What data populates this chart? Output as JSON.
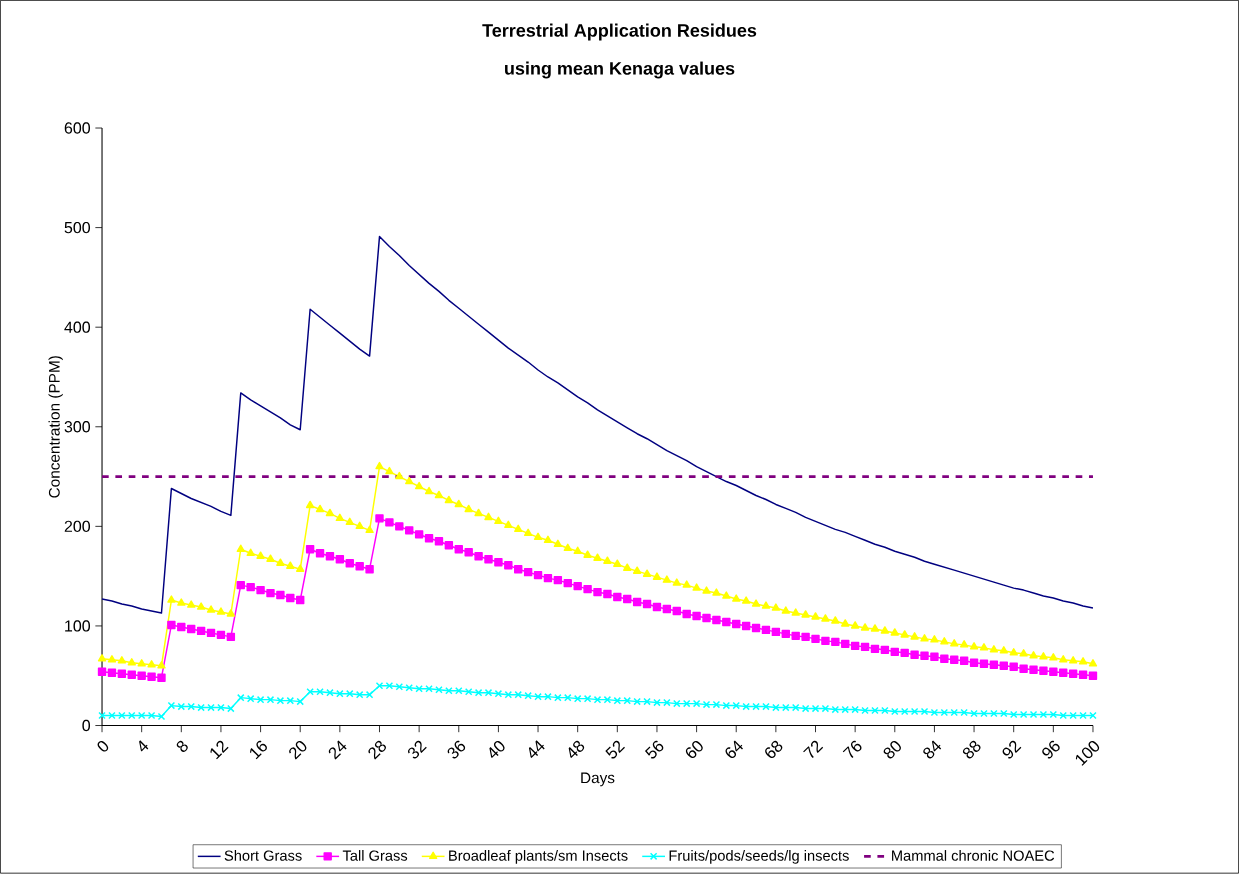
{
  "chart_data": {
    "type": "line",
    "title": "Terrestrial Application Residues",
    "subtitle": "using mean Kenaga values",
    "xlabel": "Days",
    "ylabel": "Concentration (PPM)",
    "categories": [
      "0",
      null,
      null,
      null,
      "4",
      null,
      null,
      null,
      "8",
      null,
      null,
      null,
      "12",
      null,
      null,
      null,
      "16",
      null,
      null,
      null,
      "20",
      null,
      null,
      null,
      "24",
      null,
      null,
      null,
      "28",
      null,
      null,
      null,
      "32",
      null,
      null,
      null,
      "36",
      null,
      null,
      null,
      "40",
      null,
      null,
      null,
      "44",
      null,
      null,
      null,
      "48",
      null,
      null,
      null,
      "52",
      null,
      null,
      null,
      "56",
      null,
      null,
      null,
      "60",
      null,
      null,
      null,
      "64",
      null,
      null,
      null,
      "68",
      null,
      null,
      null,
      "72",
      null,
      null,
      null,
      "76",
      null,
      null,
      null,
      "80",
      null,
      null,
      null,
      "84",
      null,
      null,
      null,
      "88",
      null,
      null,
      null,
      "92",
      null,
      null,
      null,
      "96",
      null,
      null,
      null,
      "100"
    ],
    "ylim": [
      0,
      600
    ],
    "yticks": [
      0,
      100,
      200,
      300,
      400,
      500,
      600
    ],
    "grid": false,
    "legend": "bottom",
    "line_style": "solid",
    "series": [
      {
        "name": "Short Grass",
        "color": "#000080",
        "marker": "none",
        "values": [
          127,
          125,
          122,
          120,
          117,
          115,
          113,
          238,
          233,
          228,
          224,
          220,
          215,
          211,
          334,
          327,
          321,
          315,
          309,
          302,
          297,
          418,
          410,
          402,
          394,
          386,
          378,
          371,
          491,
          481,
          472,
          462,
          453,
          444,
          436,
          427,
          419,
          411,
          403,
          395,
          387,
          379,
          372,
          365,
          357,
          350,
          344,
          337,
          330,
          324,
          317,
          311,
          305,
          299,
          293,
          288,
          282,
          276,
          271,
          266,
          260,
          255,
          250,
          245,
          241,
          236,
          231,
          227,
          222,
          218,
          214,
          209,
          205,
          201,
          197,
          194,
          190,
          186,
          182,
          179,
          175,
          172,
          169,
          165,
          162,
          159,
          156,
          153,
          150,
          147,
          144,
          141,
          138,
          136,
          133,
          130,
          128,
          125,
          123,
          120,
          118
        ]
      },
      {
        "name": "Tall Grass",
        "color": "#FF00FF",
        "marker": "square",
        "values": [
          54,
          53,
          52,
          51,
          50,
          49,
          48,
          101,
          99,
          97,
          95,
          93,
          91,
          89,
          141,
          139,
          136,
          133,
          131,
          128,
          126,
          177,
          173,
          170,
          167,
          163,
          160,
          157,
          208,
          204,
          200,
          196,
          192,
          188,
          185,
          181,
          177,
          174,
          170,
          167,
          164,
          161,
          157,
          154,
          151,
          148,
          146,
          143,
          140,
          137,
          134,
          132,
          129,
          127,
          124,
          122,
          119,
          117,
          115,
          112,
          110,
          108,
          106,
          104,
          102,
          100,
          98,
          96,
          94,
          92,
          90,
          89,
          87,
          85,
          84,
          82,
          80,
          79,
          77,
          76,
          74,
          73,
          71,
          70,
          69,
          67,
          66,
          65,
          63,
          62,
          61,
          60,
          59,
          57,
          56,
          55,
          54,
          53,
          52,
          51,
          50
        ]
      },
      {
        "name": "Broadleaf plants/sm Insects",
        "color": "#FFFF00",
        "marker": "triangle",
        "values": [
          67,
          66,
          65,
          63,
          62,
          61,
          60,
          126,
          123,
          121,
          119,
          116,
          114,
          112,
          177,
          173,
          170,
          167,
          163,
          160,
          157,
          221,
          217,
          213,
          208,
          204,
          200,
          196,
          260,
          255,
          250,
          245,
          240,
          235,
          231,
          226,
          222,
          217,
          213,
          209,
          205,
          201,
          197,
          193,
          189,
          186,
          182,
          178,
          175,
          171,
          168,
          165,
          162,
          158,
          155,
          152,
          149,
          146,
          143,
          141,
          138,
          135,
          133,
          130,
          127,
          125,
          122,
          120,
          118,
          115,
          113,
          111,
          109,
          107,
          105,
          102,
          100,
          98,
          97,
          95,
          93,
          91,
          89,
          87,
          86,
          84,
          82,
          81,
          79,
          78,
          76,
          75,
          73,
          72,
          70,
          69,
          68,
          66,
          65,
          64,
          62
        ]
      },
      {
        "name": "Fruits/pods/seeds/lg insects",
        "color": "#00FFFF",
        "marker": "cross",
        "values": [
          10,
          10,
          10,
          10,
          10,
          10,
          9,
          20,
          19,
          19,
          18,
          18,
          18,
          17,
          28,
          27,
          26,
          26,
          25,
          25,
          24,
          34,
          34,
          33,
          32,
          32,
          31,
          31,
          40,
          40,
          39,
          38,
          37,
          37,
          36,
          35,
          35,
          34,
          33,
          33,
          32,
          31,
          31,
          30,
          29,
          29,
          28,
          28,
          27,
          27,
          26,
          26,
          25,
          25,
          24,
          24,
          23,
          23,
          22,
          22,
          22,
          21,
          21,
          20,
          20,
          19,
          19,
          19,
          18,
          18,
          18,
          17,
          17,
          17,
          16,
          16,
          16,
          15,
          15,
          15,
          14,
          14,
          14,
          14,
          13,
          13,
          13,
          13,
          12,
          12,
          12,
          12,
          11,
          11,
          11,
          11,
          11,
          10,
          10,
          10,
          10
        ]
      }
    ],
    "ref_lines": [
      {
        "axis": "y",
        "value": 250,
        "label": "Mammal chronic NOAEC",
        "color": "#800080",
        "line_style": "dashed"
      }
    ]
  }
}
